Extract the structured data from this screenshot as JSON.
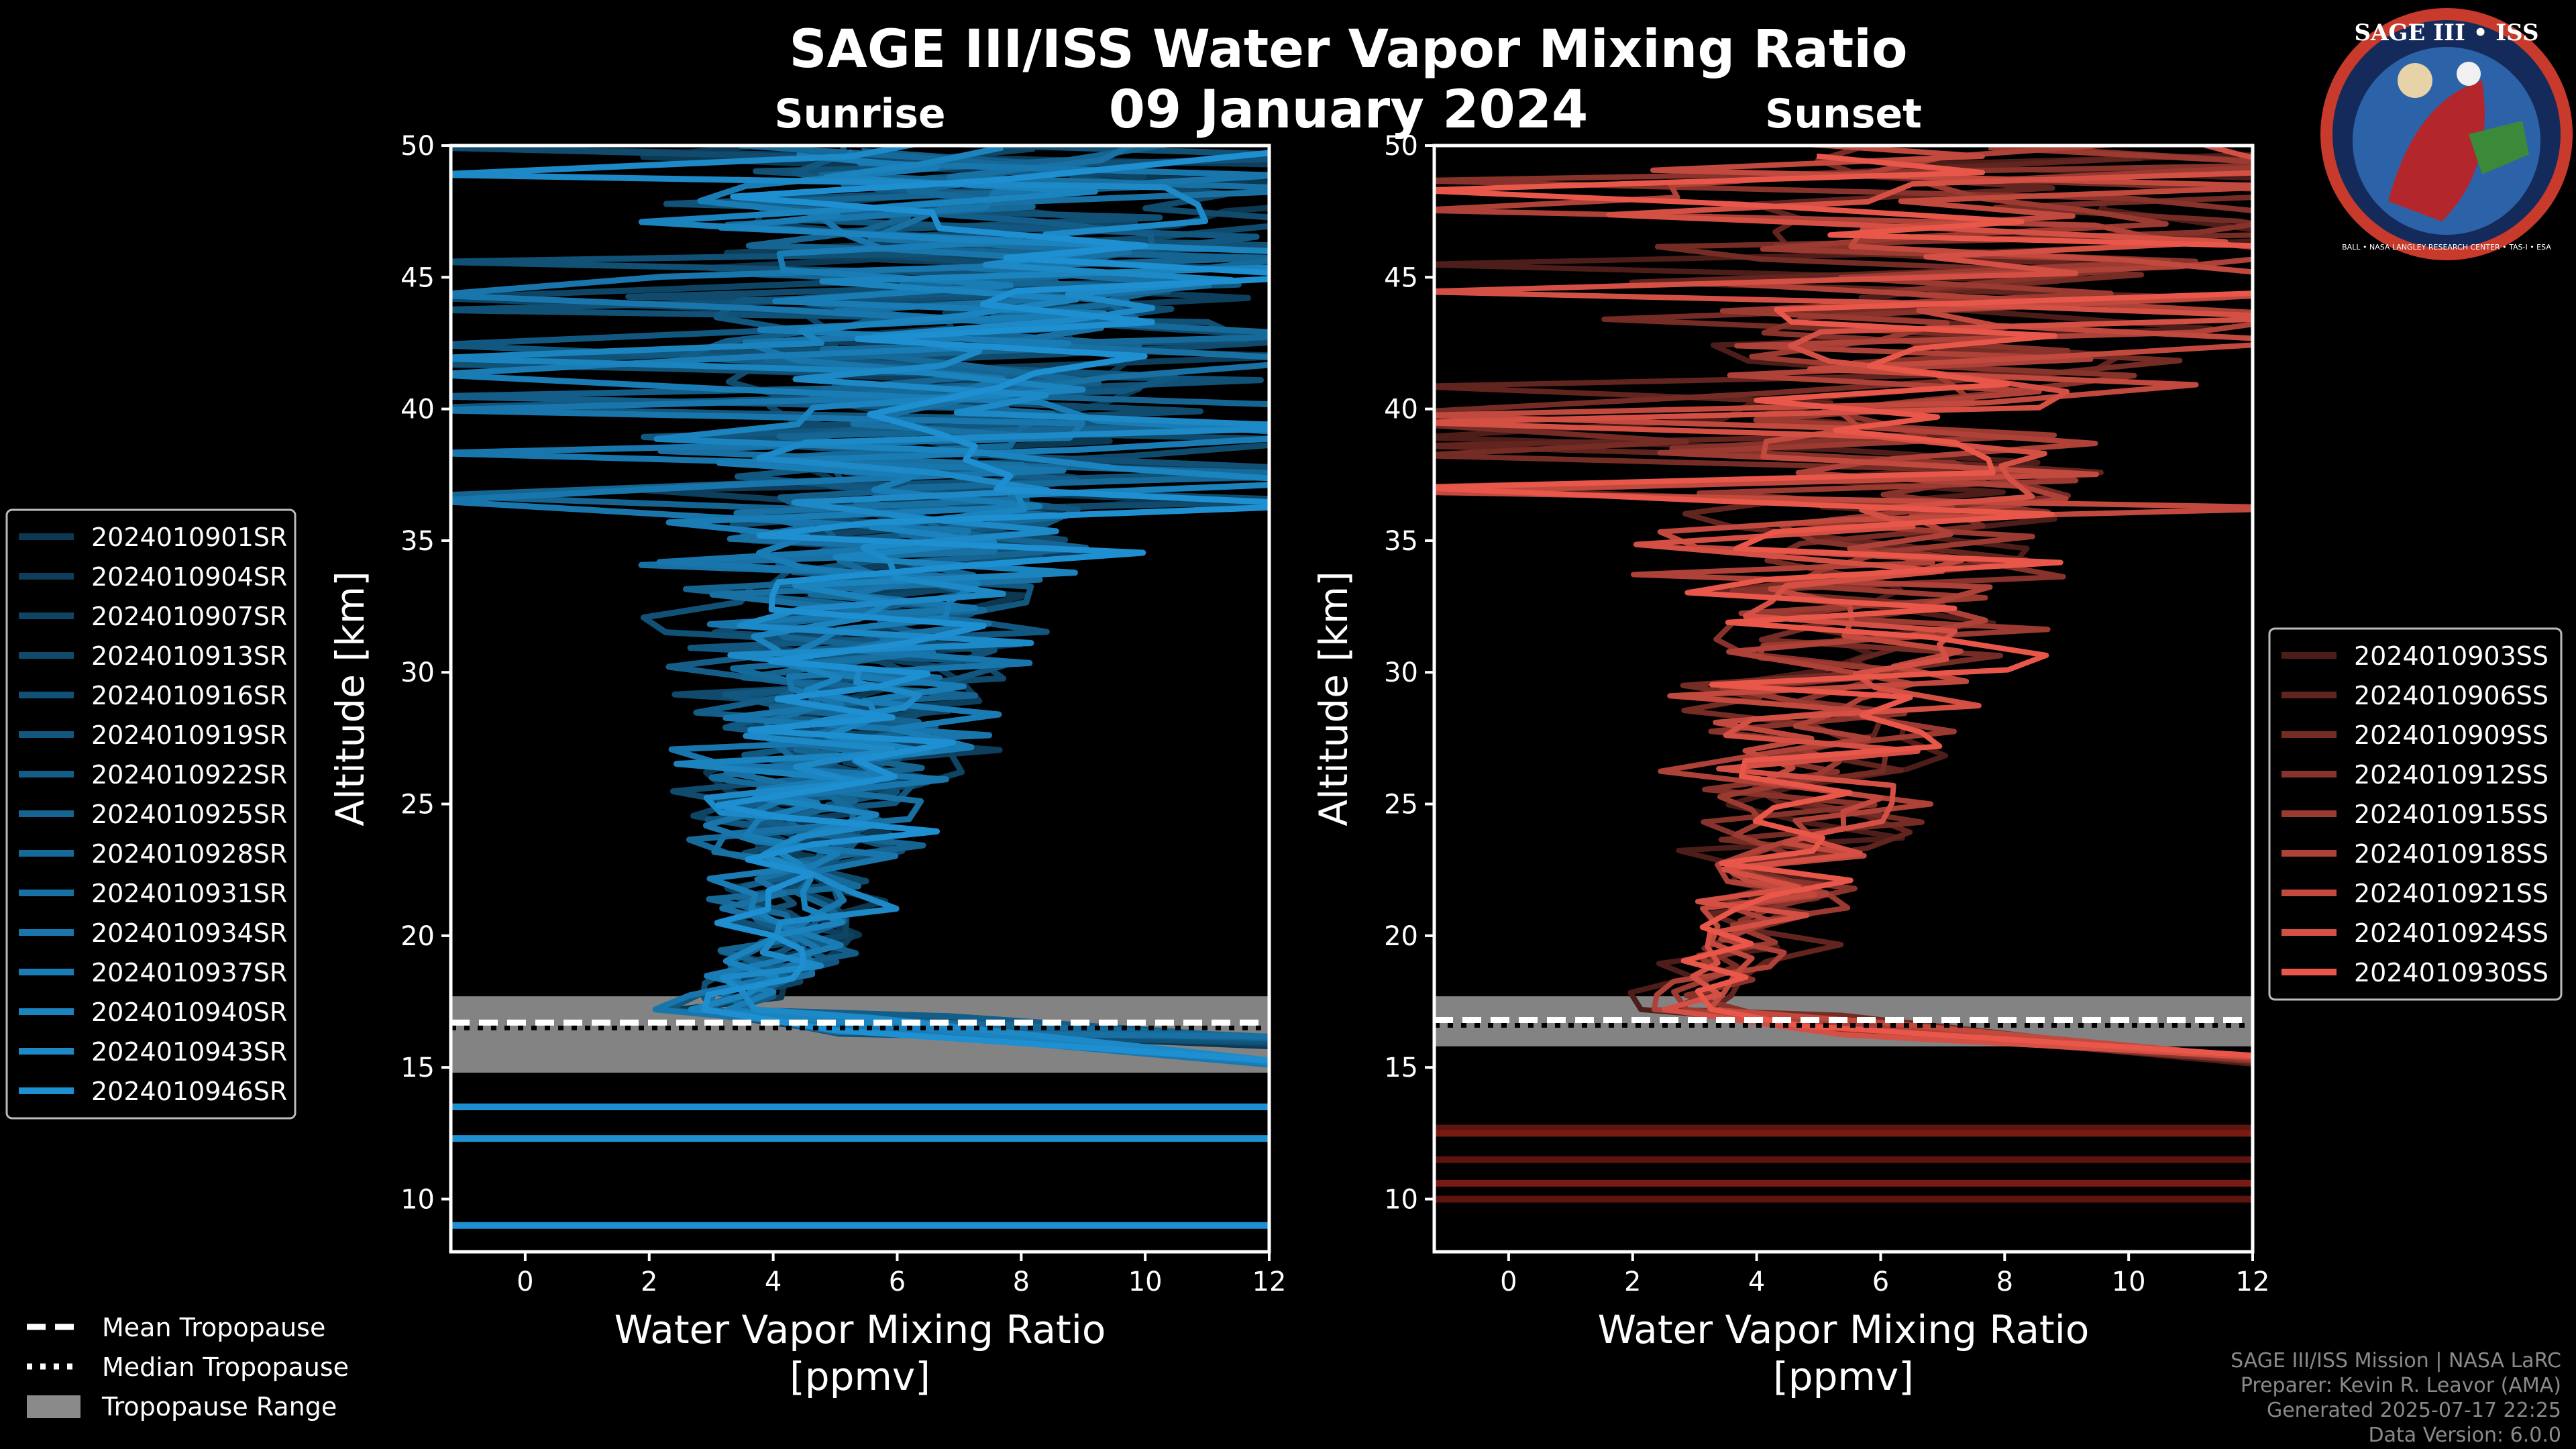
{
  "header": {
    "title": "SAGE III/ISS Water Vapor Mixing Ratio",
    "date": "09 January 2024",
    "sunrise_label": "Sunrise",
    "sunset_label": "Sunset"
  },
  "logo": {
    "text": "SAGE III • ISS",
    "ring_text": "BALL • NASA LANGLEY RESEARCH CENTER • TAS-I • ESA"
  },
  "colors": {
    "sunrise": "#1e8fd0",
    "sunset": "#e8574a",
    "trop_band": "#8a8a8a"
  },
  "chart_data": [
    {
      "type": "line",
      "panel": "Sunrise",
      "title": "Sunrise",
      "xlabel_line1": "Water Vapor Mixing Ratio",
      "xlabel_line2": "[ppmv]",
      "ylabel": "Altitude [km]",
      "xlim": [
        -1.2,
        12
      ],
      "ylim": [
        8,
        50
      ],
      "xticks": [
        0,
        2,
        4,
        6,
        8,
        10,
        12
      ],
      "yticks": [
        10,
        15,
        20,
        25,
        30,
        35,
        40,
        45,
        50
      ],
      "legend_position": "left",
      "series_names": [
        "2024010901SR",
        "2024010904SR",
        "2024010907SR",
        "2024010913SR",
        "2024010916SR",
        "2024010919SR",
        "2024010922SR",
        "2024010925SR",
        "2024010928SR",
        "2024010931SR",
        "2024010934SR",
        "2024010937SR",
        "2024010940SR",
        "2024010943SR",
        "2024010946SR"
      ],
      "profile_centers": [
        {
          "alt": 17.5,
          "x": 3.0
        },
        {
          "alt": 18,
          "x": 3.6
        },
        {
          "alt": 20,
          "x": 4.3
        },
        {
          "alt": 22,
          "x": 4.4
        },
        {
          "alt": 25,
          "x": 4.6
        },
        {
          "alt": 28,
          "x": 5.0
        },
        {
          "alt": 31,
          "x": 5.4
        },
        {
          "alt": 34,
          "x": 5.8
        },
        {
          "alt": 37,
          "x": 6.3
        },
        {
          "alt": 40,
          "x": 6.8
        },
        {
          "alt": 44,
          "x": 7.2
        },
        {
          "alt": 48,
          "x": 7.4
        },
        {
          "alt": 50,
          "x": 7.5
        }
      ],
      "tropopause": {
        "mean_km": 16.7,
        "median_km": 16.7,
        "range_km": [
          14.8,
          17.7
        ]
      },
      "lower_flat_lines_km": [
        13.5,
        12.3,
        9.0
      ]
    },
    {
      "type": "line",
      "panel": "Sunset",
      "title": "Sunset",
      "xlabel_line1": "Water Vapor Mixing Ratio",
      "xlabel_line2": "[ppmv]",
      "ylabel": "Altitude [km]",
      "xlim": [
        -1.2,
        12
      ],
      "ylim": [
        8,
        50
      ],
      "xticks": [
        0,
        2,
        4,
        6,
        8,
        10,
        12
      ],
      "yticks": [
        10,
        15,
        20,
        25,
        30,
        35,
        40,
        45,
        50
      ],
      "legend_position": "right",
      "series_names": [
        "2024010903SS",
        "2024010906SS",
        "2024010909SS",
        "2024010912SS",
        "2024010915SS",
        "2024010918SS",
        "2024010921SS",
        "2024010924SS",
        "2024010930SS"
      ],
      "profile_centers": [
        {
          "alt": 17.5,
          "x": 2.8
        },
        {
          "alt": 18.5,
          "x": 3.4
        },
        {
          "alt": 20,
          "x": 4.2
        },
        {
          "alt": 23,
          "x": 4.6
        },
        {
          "alt": 26,
          "x": 5.0
        },
        {
          "alt": 29,
          "x": 5.3
        },
        {
          "alt": 32,
          "x": 5.6
        },
        {
          "alt": 35,
          "x": 5.9
        },
        {
          "alt": 38,
          "x": 6.3
        },
        {
          "alt": 41,
          "x": 6.8
        },
        {
          "alt": 45,
          "x": 7.3
        },
        {
          "alt": 50,
          "x": 7.6
        }
      ],
      "tropopause": {
        "mean_km": 16.8,
        "median_km": 16.8,
        "range_km": [
          15.8,
          17.7
        ]
      },
      "lower_flat_lines_km": [
        12.7,
        12.5,
        11.5,
        10.6,
        10.0
      ]
    }
  ],
  "legend_tropopause": {
    "mean": "Mean Tropopause",
    "median": "Median Tropopause",
    "range": "Tropopause Range"
  },
  "footer": {
    "line1": "SAGE III/ISS Mission | NASA LaRC",
    "line2": "Preparer: Kevin R. Leavor (AMA)",
    "line3": "Generated 2025-07-17 22:25",
    "line4": "Data Version: 6.0.0"
  }
}
